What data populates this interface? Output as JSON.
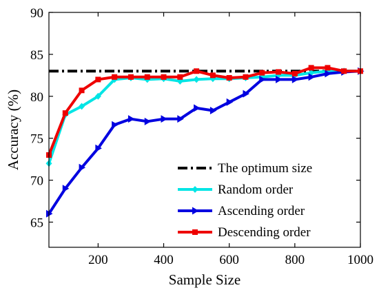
{
  "chart_data": {
    "type": "line",
    "xlabel": "Sample Size",
    "ylabel": "Accuracy (%)",
    "xlim": [
      50,
      1000
    ],
    "ylim": [
      62,
      90
    ],
    "xticks": [
      200,
      400,
      600,
      800,
      1000
    ],
    "yticks": [
      65,
      70,
      75,
      80,
      85,
      90
    ],
    "grid": false,
    "legend_position": "bottom-right",
    "reference_line": {
      "name": "The optimum size",
      "y": 83,
      "color": "#000000",
      "style": "dash-dot"
    },
    "series": [
      {
        "name": "Random order",
        "color": "#00e5e5",
        "marker": "diamond",
        "x": [
          50,
          100,
          150,
          200,
          250,
          300,
          350,
          400,
          450,
          500,
          550,
          600,
          650,
          700,
          750,
          800,
          850,
          900,
          950,
          1000
        ],
        "values": [
          72,
          77.8,
          78.8,
          80,
          82,
          82.2,
          82,
          82.1,
          81.8,
          82,
          82.1,
          82.1,
          82.2,
          82.3,
          82.5,
          82.5,
          82.8,
          83,
          83,
          83
        ]
      },
      {
        "name": "Ascending order",
        "color": "#0000e0",
        "marker": "triangle-right",
        "x": [
          50,
          100,
          150,
          200,
          250,
          300,
          350,
          400,
          450,
          500,
          550,
          600,
          650,
          700,
          750,
          800,
          850,
          900,
          950,
          1000
        ],
        "values": [
          66,
          69,
          71.5,
          73.8,
          76.6,
          77.3,
          77,
          77.3,
          77.3,
          78.6,
          78.3,
          79.3,
          80.3,
          82,
          82,
          82,
          82.3,
          82.7,
          82.9,
          83
        ]
      },
      {
        "name": "Descending order",
        "color": "#ee0000",
        "marker": "square",
        "x": [
          50,
          100,
          150,
          200,
          250,
          300,
          350,
          400,
          450,
          500,
          550,
          600,
          650,
          700,
          750,
          800,
          850,
          900,
          950,
          1000
        ],
        "values": [
          73,
          78,
          80.7,
          82,
          82.3,
          82.3,
          82.3,
          82.3,
          82.3,
          83,
          82.5,
          82.2,
          82.3,
          82.8,
          82.9,
          82.7,
          83.4,
          83.4,
          83,
          83
        ]
      }
    ]
  }
}
